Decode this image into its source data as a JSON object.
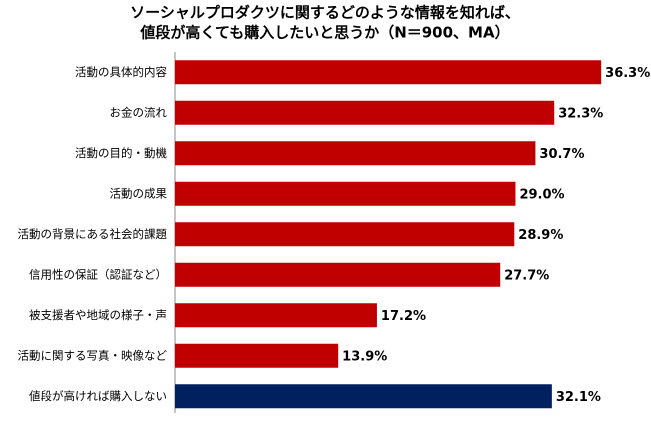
{
  "chart_data": {
    "type": "bar",
    "orientation": "horizontal",
    "title": [
      "ソーシャルプロダクツに関するどのような情報を知れば、",
      "値段が高くても購入したいと思うか（N＝900、MA）"
    ],
    "categories": [
      "活動の具体的内容",
      "お金の流れ",
      "活動の目的・動機",
      "活動の成果",
      "活動の背景にある社会的課題",
      "信用性の保証（認証など）",
      "被支援者や地域の様子・声",
      "活動に関する写真・映像など",
      "値段が高ければ購入しない"
    ],
    "values": [
      36.3,
      32.3,
      30.7,
      29.0,
      28.9,
      27.7,
      17.2,
      13.9,
      32.1
    ],
    "value_labels": [
      "36.3%",
      "32.3%",
      "30.7%",
      "29.0%",
      "28.9%",
      "27.7%",
      "17.2%",
      "13.9%",
      "32.1%"
    ],
    "colors": [
      "#c00000",
      "#c00000",
      "#c00000",
      "#c00000",
      "#c00000",
      "#c00000",
      "#c00000",
      "#c00000",
      "#002060"
    ]
  }
}
